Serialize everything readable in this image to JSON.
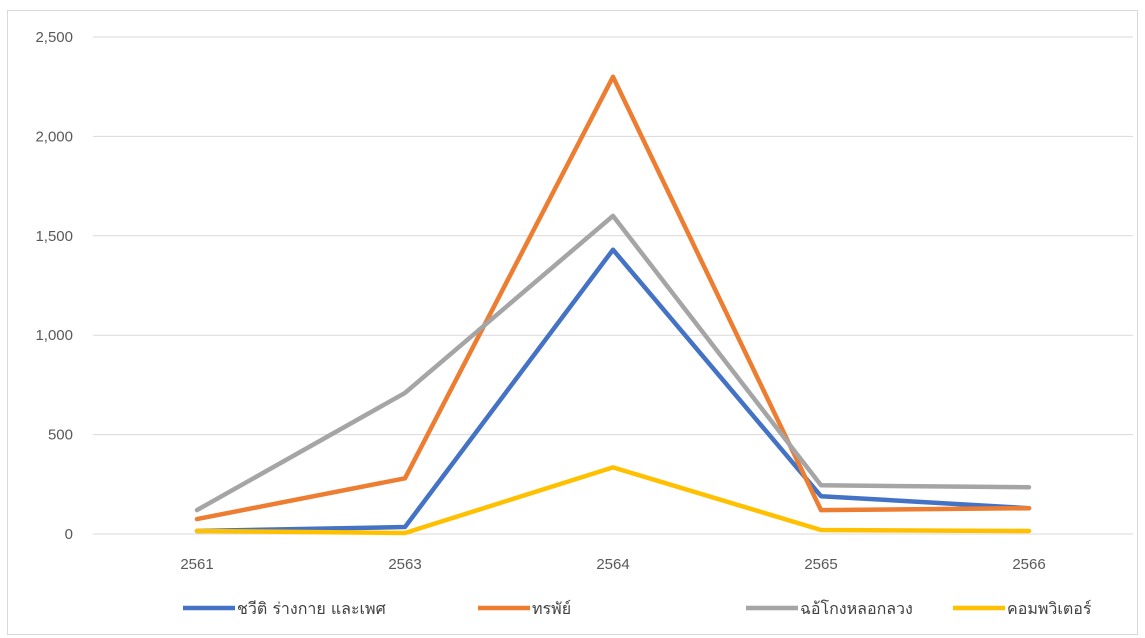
{
  "chart_data": {
    "type": "line",
    "title": "",
    "xlabel": "",
    "ylabel": "",
    "categories": [
      "2561",
      "2563",
      "2564",
      "2565",
      "2566"
    ],
    "ylim": [
      0,
      2500
    ],
    "yticks": [
      0,
      500,
      1000,
      1500,
      2000,
      2500
    ],
    "ytick_labels": [
      "0",
      "500",
      "1,000",
      "1,500",
      "2,000",
      "2,500"
    ],
    "grid": "horizontal",
    "legend_position": "bottom",
    "series": [
      {
        "name": "ชวีติ ร่างกาย และเพศ",
        "color": "#4472C4",
        "values": [
          15,
          35,
          1430,
          190,
          130
        ]
      },
      {
        "name": "ทรพัย์",
        "color": "#ED7D31",
        "values": [
          75,
          280,
          2300,
          120,
          130
        ]
      },
      {
        "name": "ฉอ้โกงหลอกลวง",
        "color": "#A5A5A5",
        "values": [
          120,
          710,
          1600,
          245,
          235
        ]
      },
      {
        "name": "คอมพวิเตอร์",
        "color": "#FFC000",
        "values": [
          15,
          5,
          335,
          20,
          15
        ]
      }
    ]
  }
}
